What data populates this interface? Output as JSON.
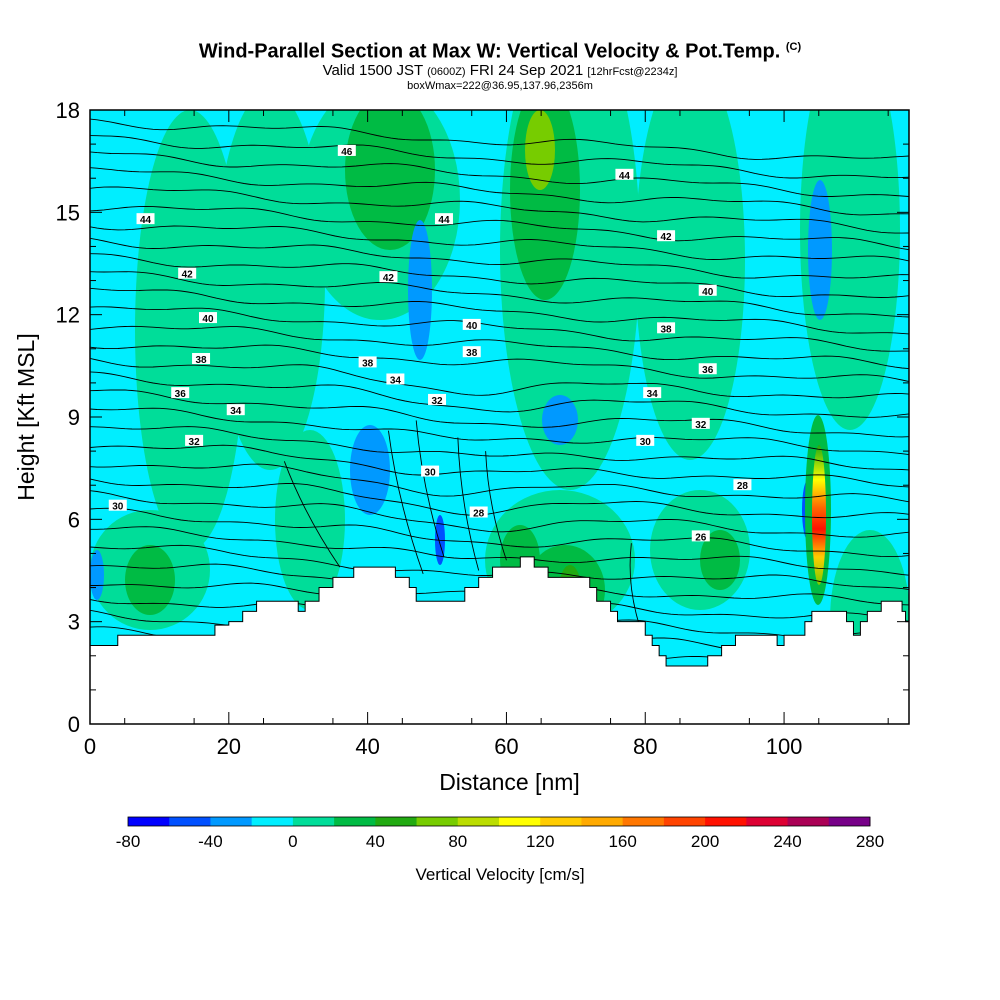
{
  "header": {
    "title": "Wind-Parallel Section at Max W: Vertical Velocity & Pot.Temp.",
    "title_tag": "(C)",
    "valid_prefix": "Valid 1500 JST",
    "valid_utc": "(0600Z)",
    "valid_date": "FRI 24 Sep 2021",
    "forecast": "[12hrFcst@2234z]",
    "box_info": "boxWmax=222@36.95,137.96,2356m"
  },
  "chart_data": {
    "type": "heatmap",
    "title": "Wind-Parallel Section at Max W: Vertical Velocity & Pot.Temp.",
    "xlabel": "Distance [nm]",
    "ylabel": "Height [Kft MSL]",
    "xlim": [
      0,
      118
    ],
    "ylim": [
      0,
      18
    ],
    "x_ticks": [
      0,
      20,
      40,
      60,
      80,
      100
    ],
    "x_tick_labels": [
      "0",
      "20",
      "40",
      "60",
      "80",
      "100"
    ],
    "y_ticks": [
      0,
      3,
      6,
      9,
      12,
      15,
      18
    ],
    "y_tick_labels": [
      "0",
      "3",
      "6",
      "9",
      "12",
      "15",
      "18"
    ],
    "terrain": [
      [
        0,
        2.3
      ],
      [
        4,
        2.6
      ],
      [
        10,
        2.6
      ],
      [
        17,
        2.6
      ],
      [
        18,
        2.9
      ],
      [
        20,
        3.0
      ],
      [
        22,
        3.3
      ],
      [
        24,
        3.6
      ],
      [
        28,
        3.6
      ],
      [
        30,
        3.3
      ],
      [
        31,
        3.6
      ],
      [
        33,
        4.0
      ],
      [
        35,
        4.3
      ],
      [
        38,
        4.6
      ],
      [
        44,
        4.3
      ],
      [
        46,
        4.0
      ],
      [
        47,
        3.6
      ],
      [
        52,
        3.6
      ],
      [
        54,
        4.0
      ],
      [
        56,
        4.3
      ],
      [
        58,
        4.6
      ],
      [
        62,
        4.9
      ],
      [
        64,
        4.6
      ],
      [
        66,
        4.3
      ],
      [
        70,
        4.3
      ],
      [
        72,
        4.0
      ],
      [
        73,
        3.6
      ],
      [
        75,
        3.3
      ],
      [
        76,
        3.0
      ],
      [
        78,
        3.0
      ],
      [
        80,
        2.6
      ],
      [
        81,
        2.3
      ],
      [
        82,
        2.0
      ],
      [
        83,
        1.7
      ],
      [
        87,
        1.7
      ],
      [
        89,
        2.0
      ],
      [
        91,
        2.3
      ],
      [
        93,
        2.6
      ],
      [
        95,
        2.6
      ],
      [
        97,
        2.6
      ],
      [
        99,
        2.3
      ],
      [
        100,
        2.6
      ],
      [
        103,
        3.0
      ],
      [
        104,
        3.3
      ],
      [
        107,
        3.3
      ],
      [
        109,
        3.0
      ],
      [
        110,
        2.6
      ],
      [
        111,
        3.0
      ],
      [
        112,
        3.3
      ],
      [
        114,
        3.6
      ],
      [
        116,
        3.6
      ],
      [
        117,
        3.3
      ],
      [
        117.5,
        3.0
      ],
      [
        118,
        2.6
      ],
      [
        118,
        0
      ],
      [
        0,
        0
      ]
    ],
    "theta_contour_levels": [
      "26",
      "28",
      "30",
      "32",
      "34",
      "36",
      "38",
      "40",
      "42",
      "44",
      "46"
    ],
    "contour_labels": [
      {
        "text": "46",
        "x": 37,
        "y": 16.8
      },
      {
        "text": "44",
        "x": 8,
        "y": 14.8
      },
      {
        "text": "44",
        "x": 51,
        "y": 14.8
      },
      {
        "text": "44",
        "x": 77,
        "y": 16.1
      },
      {
        "text": "42",
        "x": 14,
        "y": 13.2
      },
      {
        "text": "42",
        "x": 43,
        "y": 13.1
      },
      {
        "text": "42",
        "x": 83,
        "y": 14.3
      },
      {
        "text": "40",
        "x": 17,
        "y": 11.9
      },
      {
        "text": "40",
        "x": 55,
        "y": 11.7
      },
      {
        "text": "40",
        "x": 89,
        "y": 12.7
      },
      {
        "text": "38",
        "x": 16,
        "y": 10.7
      },
      {
        "text": "38",
        "x": 40,
        "y": 10.6
      },
      {
        "text": "38",
        "x": 55,
        "y": 10.9
      },
      {
        "text": "38",
        "x": 83,
        "y": 11.6
      },
      {
        "text": "36",
        "x": 13,
        "y": 9.7
      },
      {
        "text": "36",
        "x": 89,
        "y": 10.4
      },
      {
        "text": "34",
        "x": 21,
        "y": 9.2
      },
      {
        "text": "34",
        "x": 44,
        "y": 10.1
      },
      {
        "text": "34",
        "x": 81,
        "y": 9.7
      },
      {
        "text": "32",
        "x": 15,
        "y": 8.3
      },
      {
        "text": "32",
        "x": 50,
        "y": 9.5
      },
      {
        "text": "32",
        "x": 88,
        "y": 8.8
      },
      {
        "text": "30",
        "x": 4,
        "y": 6.4
      },
      {
        "text": "30",
        "x": 49,
        "y": 7.4
      },
      {
        "text": "30",
        "x": 80,
        "y": 8.3
      },
      {
        "text": "28",
        "x": 56,
        "y": 6.2
      },
      {
        "text": "28",
        "x": 94,
        "y": 7.0
      },
      {
        "text": "26",
        "x": 88,
        "y": 5.5
      }
    ],
    "colorbar": {
      "label": "Vertical Velocity [cm/s]",
      "tick_labels": [
        "-80",
        "-40",
        "0",
        "40",
        "80",
        "120",
        "160",
        "200",
        "240",
        "280"
      ],
      "min": -80,
      "max": 280,
      "step": 20,
      "colors": [
        "#0000ff",
        "#0050ff",
        "#0099ff",
        "#00eeff",
        "#00dd99",
        "#00bb44",
        "#22aa11",
        "#77cc00",
        "#bbdd00",
        "#ffff00",
        "#ffcc00",
        "#ffaa00",
        "#ff7700",
        "#ff4400",
        "#ff1100",
        "#dd0033",
        "#aa0055",
        "#770088"
      ]
    }
  }
}
